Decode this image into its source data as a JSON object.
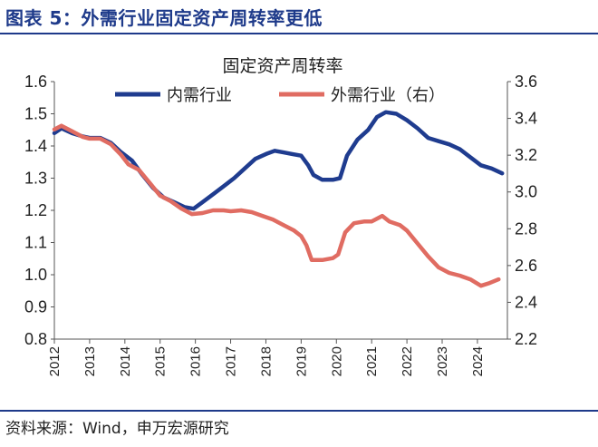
{
  "figure_title": "图表 5：外需行业固定资产周转率更低",
  "source": "资料来源：Wind，申万宏源研究",
  "colors": {
    "accent": "#1e3a8a",
    "domestic": "#1f3c8f",
    "foreign": "#e06c62"
  },
  "chart_data": {
    "type": "line",
    "title": "固定资产周转率",
    "xlabel": "",
    "ylabel": "",
    "x_ticks": [
      "2012",
      "2013",
      "2014",
      "2015",
      "2016",
      "2017",
      "2018",
      "2019",
      "2020",
      "2021",
      "2022",
      "2023",
      "2024"
    ],
    "xlim": [
      2012,
      2024.85
    ],
    "ylim_left": [
      0.8,
      1.6
    ],
    "ylim_right": [
      2.2,
      3.6
    ],
    "y_ticks_left": [
      "0.8",
      "0.9",
      "1.0",
      "1.1",
      "1.2",
      "1.3",
      "1.4",
      "1.5",
      "1.6"
    ],
    "y_ticks_right": [
      "2.2",
      "2.4",
      "2.6",
      "2.8",
      "3.0",
      "3.2",
      "3.4",
      "3.6"
    ],
    "grid": false,
    "legend_position": "top",
    "series": [
      {
        "name": "内需行业",
        "axis": "left",
        "color": "#1f3c8f",
        "points": [
          [
            2012.0,
            1.44
          ],
          [
            2012.2,
            1.455
          ],
          [
            2012.5,
            1.44
          ],
          [
            2012.8,
            1.43
          ],
          [
            2013.0,
            1.425
          ],
          [
            2013.3,
            1.425
          ],
          [
            2013.6,
            1.41
          ],
          [
            2013.9,
            1.38
          ],
          [
            2014.2,
            1.355
          ],
          [
            2014.5,
            1.31
          ],
          [
            2014.8,
            1.27
          ],
          [
            2015.1,
            1.24
          ],
          [
            2015.4,
            1.225
          ],
          [
            2015.7,
            1.21
          ],
          [
            2015.95,
            1.205
          ],
          [
            2016.2,
            1.225
          ],
          [
            2016.5,
            1.25
          ],
          [
            2016.8,
            1.275
          ],
          [
            2017.1,
            1.3
          ],
          [
            2017.4,
            1.33
          ],
          [
            2017.7,
            1.36
          ],
          [
            2018.0,
            1.375
          ],
          [
            2018.25,
            1.385
          ],
          [
            2018.5,
            1.38
          ],
          [
            2018.75,
            1.375
          ],
          [
            2019.0,
            1.37
          ],
          [
            2019.2,
            1.34
          ],
          [
            2019.35,
            1.31
          ],
          [
            2019.6,
            1.295
          ],
          [
            2019.9,
            1.295
          ],
          [
            2020.1,
            1.3
          ],
          [
            2020.3,
            1.37
          ],
          [
            2020.6,
            1.42
          ],
          [
            2020.9,
            1.45
          ],
          [
            2021.15,
            1.49
          ],
          [
            2021.4,
            1.505
          ],
          [
            2021.7,
            1.5
          ],
          [
            2022.0,
            1.48
          ],
          [
            2022.3,
            1.455
          ],
          [
            2022.6,
            1.425
          ],
          [
            2022.9,
            1.415
          ],
          [
            2023.2,
            1.405
          ],
          [
            2023.5,
            1.39
          ],
          [
            2023.8,
            1.365
          ],
          [
            2024.1,
            1.34
          ],
          [
            2024.4,
            1.33
          ],
          [
            2024.7,
            1.315
          ]
        ]
      },
      {
        "name": "外需行业（右）",
        "axis": "right",
        "color": "#e06c62",
        "points": [
          [
            2012.0,
            3.34
          ],
          [
            2012.2,
            3.36
          ],
          [
            2012.5,
            3.33
          ],
          [
            2012.8,
            3.3
          ],
          [
            2013.0,
            3.29
          ],
          [
            2013.3,
            3.29
          ],
          [
            2013.6,
            3.26
          ],
          [
            2013.9,
            3.2
          ],
          [
            2014.1,
            3.15
          ],
          [
            2014.4,
            3.12
          ],
          [
            2014.7,
            3.05
          ],
          [
            2015.0,
            2.98
          ],
          [
            2015.3,
            2.95
          ],
          [
            2015.6,
            2.91
          ],
          [
            2015.9,
            2.88
          ],
          [
            2016.2,
            2.885
          ],
          [
            2016.5,
            2.9
          ],
          [
            2016.8,
            2.9
          ],
          [
            2017.0,
            2.895
          ],
          [
            2017.3,
            2.9
          ],
          [
            2017.6,
            2.89
          ],
          [
            2017.9,
            2.87
          ],
          [
            2018.2,
            2.85
          ],
          [
            2018.5,
            2.82
          ],
          [
            2018.8,
            2.79
          ],
          [
            2019.0,
            2.76
          ],
          [
            2019.15,
            2.71
          ],
          [
            2019.3,
            2.63
          ],
          [
            2019.6,
            2.63
          ],
          [
            2019.9,
            2.64
          ],
          [
            2020.05,
            2.66
          ],
          [
            2020.25,
            2.78
          ],
          [
            2020.5,
            2.83
          ],
          [
            2020.8,
            2.84
          ],
          [
            2021.0,
            2.84
          ],
          [
            2021.3,
            2.87
          ],
          [
            2021.5,
            2.84
          ],
          [
            2021.8,
            2.82
          ],
          [
            2022.0,
            2.79
          ],
          [
            2022.3,
            2.72
          ],
          [
            2022.6,
            2.65
          ],
          [
            2022.9,
            2.59
          ],
          [
            2023.2,
            2.56
          ],
          [
            2023.5,
            2.545
          ],
          [
            2023.8,
            2.525
          ],
          [
            2024.1,
            2.49
          ],
          [
            2024.35,
            2.505
          ],
          [
            2024.6,
            2.525
          ]
        ]
      }
    ]
  }
}
